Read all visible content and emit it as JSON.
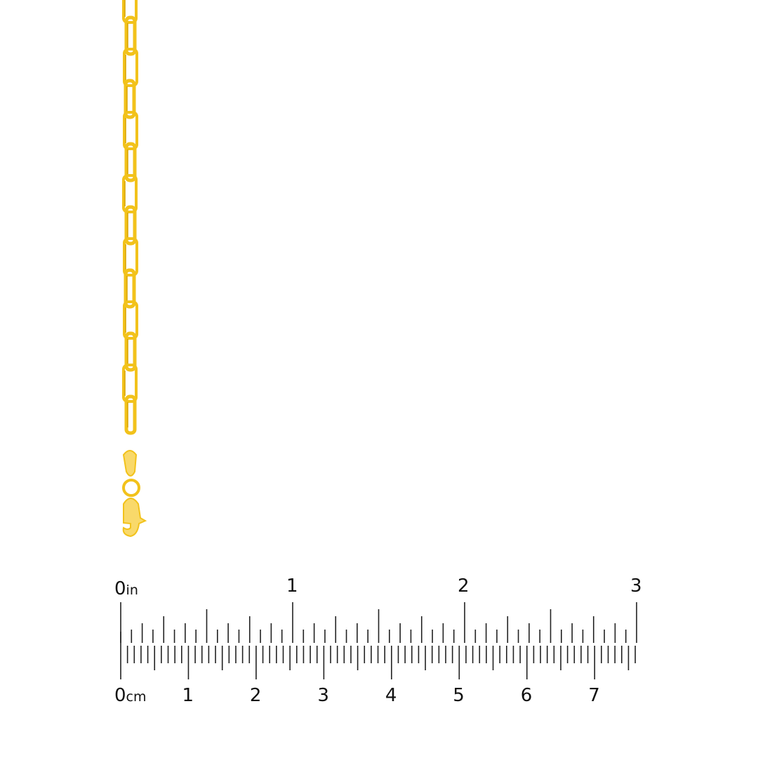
{
  "colors": {
    "gold": "#f2c21b",
    "gold_dark": "#d9a300",
    "gold_light": "#f9d96a",
    "ruler": "#222222"
  },
  "ruler": {
    "inch_unit": "in",
    "cm_unit": "cm",
    "inch_labels": [
      "0",
      "1",
      "2",
      "3"
    ],
    "cm_labels": [
      "0",
      "1",
      "2",
      "3",
      "4",
      "5",
      "6",
      "7"
    ]
  }
}
